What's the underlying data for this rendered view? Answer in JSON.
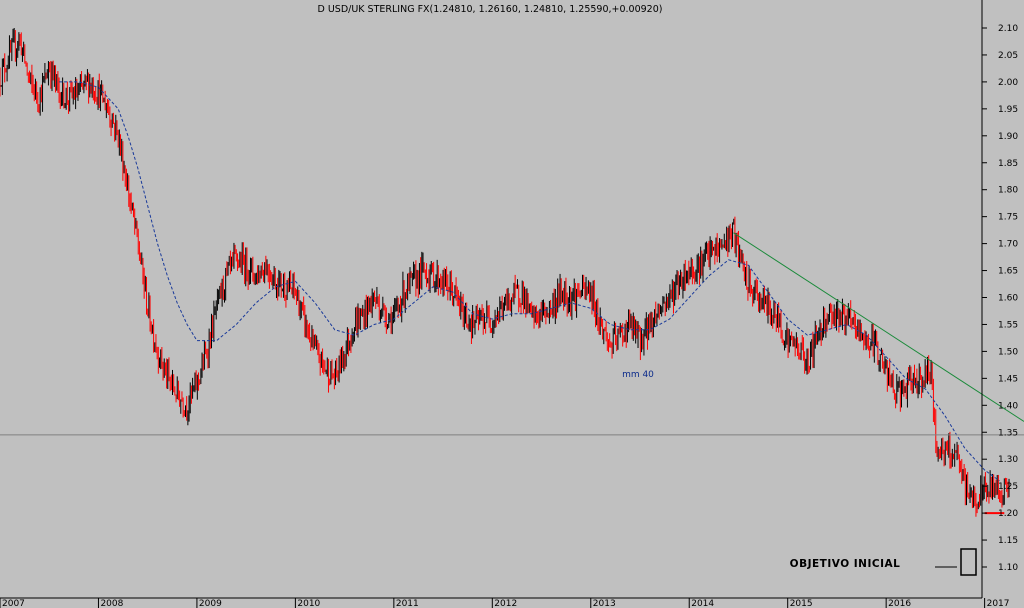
{
  "chart_data": {
    "type": "candlestick",
    "title": "D USD/UK STERLING FX(1.24810, 1.26160, 1.24810, 1.25590,+0.00920)",
    "xlabel": "",
    "ylabel": "",
    "ylim": [
      1.05,
      2.15
    ],
    "xlim": [
      2007.0,
      2017.4
    ],
    "y_ticks": [
      "2.10",
      "2.05",
      "2.00",
      "1.95",
      "1.90",
      "1.85",
      "1.80",
      "1.75",
      "1.70",
      "1.65",
      "1.60",
      "1.55",
      "1.50",
      "1.45",
      "1.40",
      "1.35",
      "1.30",
      "1.25",
      "1.20",
      "1.15",
      "1.10"
    ],
    "x_ticks": [
      {
        "label": "2007",
        "x": 2007.0
      },
      {
        "label": "2008",
        "x": 2008.0
      },
      {
        "label": "2009",
        "x": 2009.0
      },
      {
        "label": "2010",
        "x": 2010.0
      },
      {
        "label": "2011",
        "x": 2011.0
      },
      {
        "label": "2012",
        "x": 2012.0
      },
      {
        "label": "2013",
        "x": 2013.0
      },
      {
        "label": "2014",
        "x": 2014.0
      },
      {
        "label": "2015",
        "x": 2015.0
      },
      {
        "label": "2016",
        "x": 2016.0
      },
      {
        "label": "2017",
        "x": 2017.0
      }
    ],
    "grid": false,
    "price_path": [
      [
        2007.0,
        2.01
      ],
      [
        2007.1,
        2.05
      ],
      [
        2007.2,
        2.08
      ],
      [
        2007.3,
        2.0
      ],
      [
        2007.4,
        1.97
      ],
      [
        2007.5,
        2.03
      ],
      [
        2007.6,
        1.98
      ],
      [
        2007.7,
        1.97
      ],
      [
        2007.8,
        1.98
      ],
      [
        2007.9,
        2.0
      ],
      [
        2008.0,
        1.98
      ],
      [
        2008.1,
        1.95
      ],
      [
        2008.2,
        1.9
      ],
      [
        2008.3,
        1.8
      ],
      [
        2008.4,
        1.7
      ],
      [
        2008.5,
        1.58
      ],
      [
        2008.6,
        1.5
      ],
      [
        2008.7,
        1.45
      ],
      [
        2008.8,
        1.42
      ],
      [
        2008.9,
        1.4
      ],
      [
        2009.0,
        1.44
      ],
      [
        2009.1,
        1.5
      ],
      [
        2009.2,
        1.58
      ],
      [
        2009.3,
        1.64
      ],
      [
        2009.4,
        1.67
      ],
      [
        2009.5,
        1.66
      ],
      [
        2009.6,
        1.64
      ],
      [
        2009.7,
        1.66
      ],
      [
        2009.8,
        1.63
      ],
      [
        2009.9,
        1.62
      ],
      [
        2010.0,
        1.61
      ],
      [
        2010.1,
        1.55
      ],
      [
        2010.2,
        1.5
      ],
      [
        2010.3,
        1.47
      ],
      [
        2010.4,
        1.45
      ],
      [
        2010.5,
        1.5
      ],
      [
        2010.6,
        1.55
      ],
      [
        2010.7,
        1.57
      ],
      [
        2010.8,
        1.6
      ],
      [
        2010.9,
        1.57
      ],
      [
        2011.0,
        1.56
      ],
      [
        2011.1,
        1.61
      ],
      [
        2011.2,
        1.63
      ],
      [
        2011.3,
        1.65
      ],
      [
        2011.4,
        1.64
      ],
      [
        2011.5,
        1.63
      ],
      [
        2011.6,
        1.61
      ],
      [
        2011.7,
        1.57
      ],
      [
        2011.8,
        1.55
      ],
      [
        2011.9,
        1.56
      ],
      [
        2012.0,
        1.56
      ],
      [
        2012.1,
        1.58
      ],
      [
        2012.2,
        1.6
      ],
      [
        2012.3,
        1.61
      ],
      [
        2012.4,
        1.56
      ],
      [
        2012.5,
        1.57
      ],
      [
        2012.6,
        1.58
      ],
      [
        2012.7,
        1.61
      ],
      [
        2012.8,
        1.6
      ],
      [
        2012.9,
        1.61
      ],
      [
        2013.0,
        1.61
      ],
      [
        2013.1,
        1.55
      ],
      [
        2013.2,
        1.51
      ],
      [
        2013.3,
        1.53
      ],
      [
        2013.4,
        1.55
      ],
      [
        2013.5,
        1.52
      ],
      [
        2013.6,
        1.55
      ],
      [
        2013.7,
        1.58
      ],
      [
        2013.8,
        1.6
      ],
      [
        2013.9,
        1.63
      ],
      [
        2014.0,
        1.65
      ],
      [
        2014.1,
        1.66
      ],
      [
        2014.2,
        1.68
      ],
      [
        2014.3,
        1.69
      ],
      [
        2014.4,
        1.71
      ],
      [
        2014.45,
        1.72
      ],
      [
        2014.5,
        1.68
      ],
      [
        2014.6,
        1.62
      ],
      [
        2014.7,
        1.6
      ],
      [
        2014.8,
        1.58
      ],
      [
        2014.9,
        1.56
      ],
      [
        2015.0,
        1.52
      ],
      [
        2015.1,
        1.51
      ],
      [
        2015.2,
        1.48
      ],
      [
        2015.3,
        1.53
      ],
      [
        2015.4,
        1.57
      ],
      [
        2015.5,
        1.57
      ],
      [
        2015.6,
        1.56
      ],
      [
        2015.7,
        1.54
      ],
      [
        2015.8,
        1.52
      ],
      [
        2015.9,
        1.51
      ],
      [
        2016.0,
        1.46
      ],
      [
        2016.1,
        1.42
      ],
      [
        2016.2,
        1.43
      ],
      [
        2016.3,
        1.45
      ],
      [
        2016.4,
        1.45
      ],
      [
        2016.45,
        1.48
      ],
      [
        2016.5,
        1.33
      ],
      [
        2016.6,
        1.31
      ],
      [
        2016.7,
        1.31
      ],
      [
        2016.8,
        1.25
      ],
      [
        2016.9,
        1.22
      ],
      [
        2017.0,
        1.24
      ],
      [
        2017.1,
        1.25
      ],
      [
        2017.2,
        1.24
      ],
      [
        2017.25,
        1.256
      ]
    ],
    "series": [
      {
        "name": "mm 40",
        "type": "line",
        "style": "dashed",
        "color": "#1a3a9a",
        "values": [
          [
            2007.6,
            2.0
          ],
          [
            2007.8,
            2.0
          ],
          [
            2008.0,
            1.99
          ],
          [
            2008.2,
            1.95
          ],
          [
            2008.3,
            1.9
          ],
          [
            2008.4,
            1.84
          ],
          [
            2008.5,
            1.77
          ],
          [
            2008.6,
            1.7
          ],
          [
            2008.7,
            1.64
          ],
          [
            2008.8,
            1.59
          ],
          [
            2008.9,
            1.55
          ],
          [
            2009.0,
            1.52
          ],
          [
            2009.2,
            1.52
          ],
          [
            2009.4,
            1.55
          ],
          [
            2009.6,
            1.59
          ],
          [
            2009.8,
            1.62
          ],
          [
            2010.0,
            1.63
          ],
          [
            2010.2,
            1.59
          ],
          [
            2010.4,
            1.54
          ],
          [
            2010.6,
            1.53
          ],
          [
            2010.8,
            1.55
          ],
          [
            2011.0,
            1.56
          ],
          [
            2011.2,
            1.59
          ],
          [
            2011.4,
            1.62
          ],
          [
            2011.6,
            1.61
          ],
          [
            2011.8,
            1.57
          ],
          [
            2012.0,
            1.56
          ],
          [
            2012.2,
            1.57
          ],
          [
            2012.4,
            1.57
          ],
          [
            2012.6,
            1.58
          ],
          [
            2012.8,
            1.59
          ],
          [
            2013.0,
            1.58
          ],
          [
            2013.2,
            1.55
          ],
          [
            2013.4,
            1.54
          ],
          [
            2013.6,
            1.54
          ],
          [
            2013.8,
            1.56
          ],
          [
            2014.0,
            1.6
          ],
          [
            2014.2,
            1.64
          ],
          [
            2014.4,
            1.67
          ],
          [
            2014.6,
            1.66
          ],
          [
            2014.8,
            1.61
          ],
          [
            2015.0,
            1.56
          ],
          [
            2015.2,
            1.53
          ],
          [
            2015.4,
            1.54
          ],
          [
            2015.6,
            1.55
          ],
          [
            2015.8,
            1.53
          ],
          [
            2016.0,
            1.49
          ],
          [
            2016.2,
            1.45
          ],
          [
            2016.4,
            1.43
          ],
          [
            2016.6,
            1.38
          ],
          [
            2016.8,
            1.32
          ],
          [
            2017.0,
            1.28
          ],
          [
            2017.15,
            1.26
          ]
        ]
      },
      {
        "name": "trendline",
        "type": "line",
        "color": "#1a8a3a",
        "values": [
          [
            2014.45,
            1.72
          ],
          [
            2017.4,
            1.37
          ]
        ]
      },
      {
        "name": "support",
        "type": "line",
        "color": "#808080",
        "values": [
          [
            2007.0,
            1.345
          ],
          [
            2017.4,
            1.345
          ]
        ]
      },
      {
        "name": "objective",
        "type": "line",
        "color": "#ff0000",
        "values": [
          [
            2017.0,
            1.2
          ],
          [
            2017.2,
            1.2
          ]
        ]
      }
    ],
    "annotations": [
      {
        "text": "mm 40",
        "x": 2015.9,
        "y": 1.43
      },
      {
        "text": "OBJETIVO INICIAL",
        "x": 2017.0,
        "y": 1.13
      }
    ],
    "colors": {
      "background": "#c0c0c0",
      "up_candle": "#000000",
      "down_candle": "#ff0000"
    }
  }
}
